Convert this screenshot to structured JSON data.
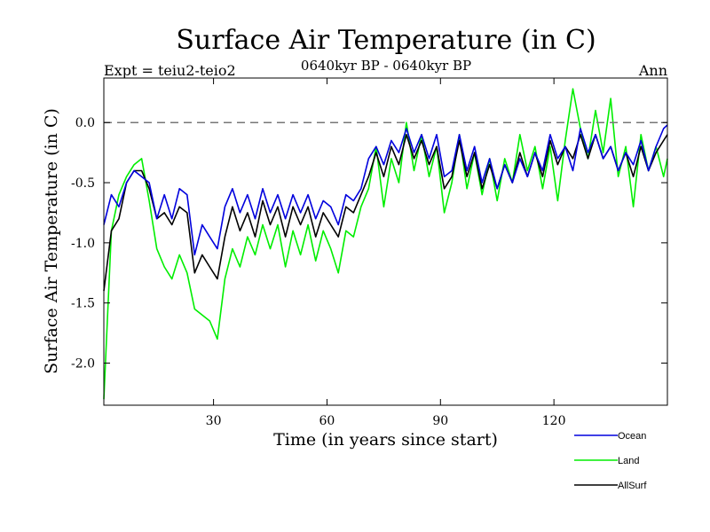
{
  "chart_data": {
    "type": "line",
    "title": "Surface Air Temperature (in C)",
    "subtitle": "0640kyr BP - 0640kyr BP",
    "experiment_label": "Expt = teiu2-teio2",
    "season_label": "Ann",
    "xlabel": "Time (in years since start)",
    "ylabel": "Surface Air Temperature (in C)",
    "xlim": [
      1,
      150
    ],
    "ylim": [
      -2.35,
      0.37
    ],
    "xticks": [
      30,
      60,
      90,
      120
    ],
    "xtick_labels": [
      "30",
      "60",
      "90",
      "120"
    ],
    "yticks": [
      0.0,
      -0.5,
      -1.0,
      -1.5,
      -2.0
    ],
    "ytick_labels": [
      "0.0",
      "-0.5",
      "-1.0",
      "-1.5",
      "-2.0"
    ],
    "reference_line": 0.0,
    "grid": false,
    "legend_position": "bottom-right",
    "series": [
      {
        "name": "Ocean",
        "color": "#0000dd",
        "x": [
          1,
          3,
          5,
          7,
          9,
          11,
          13,
          15,
          17,
          19,
          21,
          23,
          25,
          27,
          29,
          31,
          33,
          35,
          37,
          39,
          41,
          43,
          45,
          47,
          49,
          51,
          53,
          55,
          57,
          59,
          61,
          63,
          65,
          67,
          69,
          71,
          73,
          75,
          77,
          79,
          81,
          83,
          85,
          87,
          89,
          91,
          93,
          95,
          97,
          99,
          101,
          103,
          105,
          107,
          109,
          111,
          113,
          115,
          117,
          119,
          121,
          123,
          125,
          127,
          129,
          131,
          133,
          135,
          137,
          139,
          141,
          143,
          145,
          147,
          149,
          150
        ],
        "values": [
          -0.85,
          -0.6,
          -0.7,
          -0.5,
          -0.4,
          -0.45,
          -0.5,
          -0.8,
          -0.6,
          -0.8,
          -0.55,
          -0.6,
          -1.1,
          -0.85,
          -0.95,
          -1.05,
          -0.7,
          -0.55,
          -0.75,
          -0.6,
          -0.8,
          -0.55,
          -0.75,
          -0.6,
          -0.8,
          -0.6,
          -0.75,
          -0.6,
          -0.8,
          -0.65,
          -0.7,
          -0.85,
          -0.6,
          -0.65,
          -0.55,
          -0.3,
          -0.2,
          -0.35,
          -0.15,
          -0.25,
          -0.05,
          -0.25,
          -0.1,
          -0.3,
          -0.1,
          -0.45,
          -0.4,
          -0.1,
          -0.4,
          -0.2,
          -0.5,
          -0.3,
          -0.55,
          -0.35,
          -0.5,
          -0.3,
          -0.45,
          -0.25,
          -0.4,
          -0.1,
          -0.3,
          -0.2,
          -0.4,
          -0.05,
          -0.25,
          -0.1,
          -0.3,
          -0.2,
          -0.4,
          -0.25,
          -0.35,
          -0.15,
          -0.4,
          -0.2,
          -0.05,
          -0.02
        ]
      },
      {
        "name": "Land",
        "color": "#00ee00",
        "x": [
          1,
          3,
          5,
          7,
          9,
          11,
          13,
          15,
          17,
          19,
          21,
          23,
          25,
          27,
          29,
          31,
          33,
          35,
          37,
          39,
          41,
          43,
          45,
          47,
          49,
          51,
          53,
          55,
          57,
          59,
          61,
          63,
          65,
          67,
          69,
          71,
          73,
          75,
          77,
          79,
          81,
          83,
          85,
          87,
          89,
          91,
          93,
          95,
          97,
          99,
          101,
          103,
          105,
          107,
          109,
          111,
          113,
          115,
          117,
          119,
          121,
          123,
          125,
          127,
          129,
          131,
          133,
          135,
          137,
          139,
          141,
          143,
          145,
          147,
          149,
          150
        ],
        "values": [
          -2.3,
          -0.9,
          -0.6,
          -0.45,
          -0.35,
          -0.3,
          -0.65,
          -1.05,
          -1.2,
          -1.3,
          -1.1,
          -1.25,
          -1.55,
          -1.6,
          -1.65,
          -1.8,
          -1.3,
          -1.05,
          -1.2,
          -0.95,
          -1.1,
          -0.85,
          -1.05,
          -0.85,
          -1.2,
          -0.9,
          -1.1,
          -0.85,
          -1.15,
          -0.9,
          -1.05,
          -1.25,
          -0.9,
          -0.95,
          -0.7,
          -0.55,
          -0.2,
          -0.7,
          -0.3,
          -0.5,
          0.0,
          -0.4,
          -0.1,
          -0.45,
          -0.2,
          -0.75,
          -0.5,
          -0.1,
          -0.55,
          -0.25,
          -0.6,
          -0.3,
          -0.65,
          -0.3,
          -0.5,
          -0.1,
          -0.4,
          -0.2,
          -0.55,
          -0.2,
          -0.65,
          -0.15,
          0.28,
          -0.05,
          -0.3,
          0.1,
          -0.25,
          0.2,
          -0.45,
          -0.2,
          -0.7,
          -0.1,
          -0.4,
          -0.2,
          -0.45,
          -0.3
        ]
      },
      {
        "name": "AllSurf",
        "color": "#000000",
        "x": [
          1,
          3,
          5,
          7,
          9,
          11,
          13,
          15,
          17,
          19,
          21,
          23,
          25,
          27,
          29,
          31,
          33,
          35,
          37,
          39,
          41,
          43,
          45,
          47,
          49,
          51,
          53,
          55,
          57,
          59,
          61,
          63,
          65,
          67,
          69,
          71,
          73,
          75,
          77,
          79,
          81,
          83,
          85,
          87,
          89,
          91,
          93,
          95,
          97,
          99,
          101,
          103,
          105,
          107,
          109,
          111,
          113,
          115,
          117,
          119,
          121,
          123,
          125,
          127,
          129,
          131,
          133,
          135,
          137,
          139,
          141,
          143,
          145,
          147,
          149,
          150
        ],
        "values": [
          -1.4,
          -0.9,
          -0.8,
          -0.5,
          -0.4,
          -0.4,
          -0.55,
          -0.8,
          -0.75,
          -0.85,
          -0.7,
          -0.75,
          -1.25,
          -1.1,
          -1.2,
          -1.3,
          -0.95,
          -0.7,
          -0.9,
          -0.75,
          -0.95,
          -0.65,
          -0.85,
          -0.7,
          -0.95,
          -0.7,
          -0.85,
          -0.7,
          -0.95,
          -0.75,
          -0.85,
          -0.95,
          -0.7,
          -0.75,
          -0.6,
          -0.45,
          -0.25,
          -0.45,
          -0.2,
          -0.35,
          -0.1,
          -0.3,
          -0.15,
          -0.35,
          -0.2,
          -0.55,
          -0.45,
          -0.15,
          -0.45,
          -0.25,
          -0.55,
          -0.35,
          -0.55,
          -0.35,
          -0.5,
          -0.25,
          -0.45,
          -0.25,
          -0.45,
          -0.15,
          -0.35,
          -0.2,
          -0.3,
          -0.1,
          -0.3,
          -0.1,
          -0.3,
          -0.2,
          -0.4,
          -0.25,
          -0.45,
          -0.2,
          -0.4,
          -0.25,
          -0.15,
          -0.1
        ]
      }
    ]
  }
}
